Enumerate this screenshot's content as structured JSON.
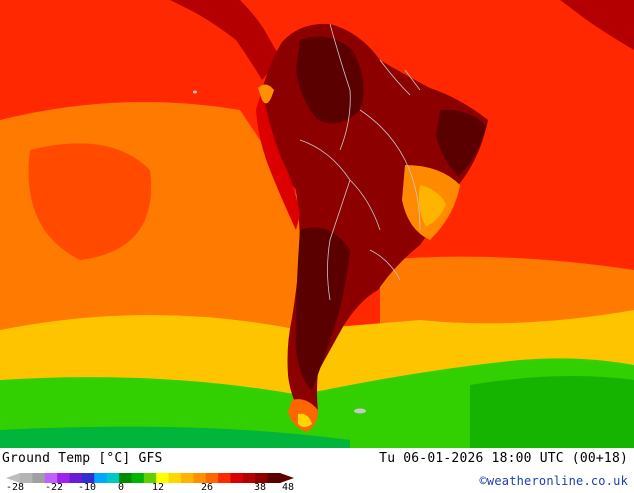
{
  "title": "Ground Temp [°C] GFS",
  "valid_time": "Tu 06-01-2026 18:00 UTC (00+18)",
  "credit": "©weatheronline.co.uk",
  "legend": {
    "ticks": [
      "-28",
      "-22",
      "-10",
      "0",
      "12",
      "26",
      "38",
      "48"
    ],
    "colors": [
      "#b4b4b4",
      "#a0a0a0",
      "#c060ff",
      "#a020f0",
      "#6a1bd6",
      "#2f2fd0",
      "#00a8ff",
      "#00c8c8",
      "#008c00",
      "#00b400",
      "#60d000",
      "#ffff00",
      "#ffd700",
      "#ffb400",
      "#ff9100",
      "#ff6600",
      "#ff2800",
      "#dc0000",
      "#b40000",
      "#8c0000",
      "#5a0000"
    ]
  },
  "map_colors": {
    "land_dark": "#5a0000",
    "land_mid": "#8c0000",
    "land_red": "#b40000",
    "ocean_red": "#ff2800",
    "ocean_orange": "#ff7a00",
    "ocean_yellow": "#ffc400",
    "south_green": "#32d000",
    "border": "#c8c8c8"
  }
}
